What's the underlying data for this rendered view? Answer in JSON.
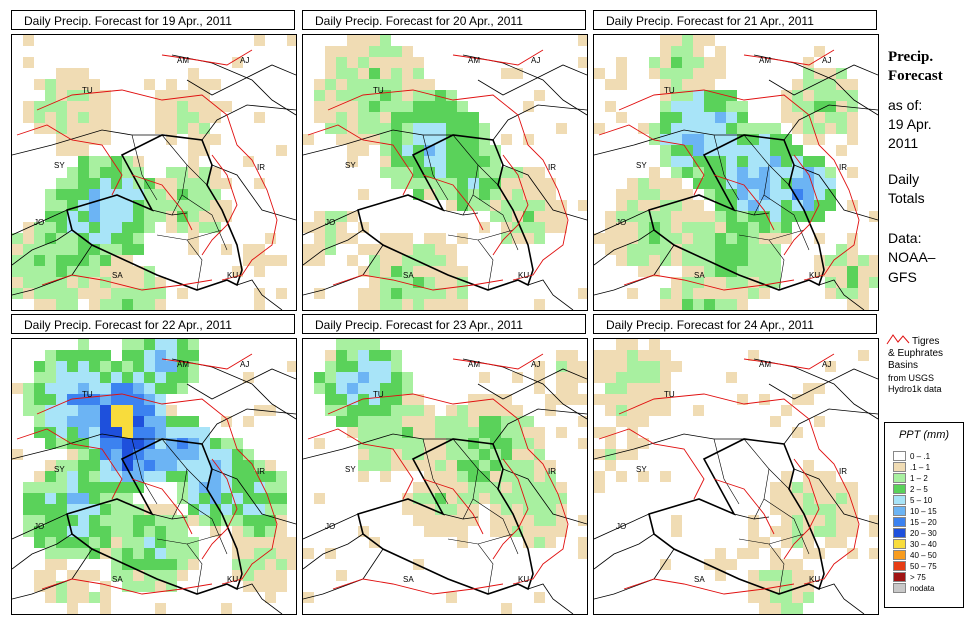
{
  "panels": [
    {
      "title": "Daily Precip. Forecast for  19 Apr., 2011"
    },
    {
      "title": "Daily Precip. Forecast for  20 Apr., 2011"
    },
    {
      "title": "Daily Precip. Forecast for  21 Apr., 2011"
    },
    {
      "title": "Daily Precip. Forecast for  22 Apr., 2011"
    },
    {
      "title": "Daily Precip. Forecast for  23 Apr., 2011"
    },
    {
      "title": "Daily Precip. Forecast for  24 Apr., 2011"
    }
  ],
  "map_labels": {
    "am": "AM",
    "aj": "AJ",
    "tu": "TU",
    "sy": "SY",
    "ir": "IR",
    "jo": "JO",
    "sa": "SA",
    "ku": "KU"
  },
  "side": {
    "title_line1": "Precip.",
    "title_line2": "Forecast",
    "asof": "as of:",
    "date_line1": "19 Apr.",
    "date_line2": "2011",
    "daily_line1": "Daily",
    "daily_line2": "Totals",
    "data_line1": "Data:",
    "data_line2": "NOAA–",
    "data_line3": "GFS",
    "basin_line1": "Tigres",
    "basin_line2": "& Euphrates",
    "basin_line3": "Basins",
    "basin_line4": "from USGS",
    "basin_line5": "Hydro1k data"
  },
  "legend": {
    "title": "PPT (mm)",
    "items": [
      {
        "label": "0 – .1",
        "color": "#ffffff"
      },
      {
        "label": ".1 – 1",
        "color": "#f0dcb4"
      },
      {
        "label": "1 – 2",
        "color": "#a8f0a0"
      },
      {
        "label": "2 – 5",
        "color": "#5ad25a"
      },
      {
        "label": "5 – 10",
        "color": "#a8e4f8"
      },
      {
        "label": "10 – 15",
        "color": "#6cb4f4"
      },
      {
        "label": "15 – 20",
        "color": "#3c82f0"
      },
      {
        "label": "20 – 30",
        "color": "#1e50dc"
      },
      {
        "label": "30 – 40",
        "color": "#f8dc3c"
      },
      {
        "label": "40 – 50",
        "color": "#f89c1e"
      },
      {
        "label": "50 – 75",
        "color": "#e63c14"
      },
      {
        "label": "> 75",
        "color": "#a01414"
      },
      {
        "label": "nodata",
        "color": "#c8c8c8"
      }
    ]
  },
  "colors": {
    "boundary": "#000000",
    "basin": "#e01010"
  }
}
